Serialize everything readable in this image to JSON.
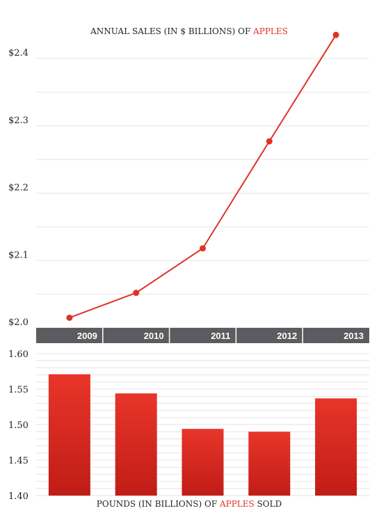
{
  "colors": {
    "accent": "#e03126",
    "bar_top": "#e8352a",
    "bar_bottom": "#c01d17",
    "axis_band": "#5c5c60",
    "axis_band_text": "#ffffff",
    "grid": "#e4e4e4",
    "text": "#222222"
  },
  "chart_data": [
    {
      "type": "line",
      "title_parts": [
        "ANNUAL SALES (IN $ BILLIONS) OF ",
        "APPLES",
        ""
      ],
      "x": [
        "2009",
        "2010",
        "2011",
        "2012",
        "2013"
      ],
      "series": [
        {
          "values": [
            2.015,
            2.052,
            2.118,
            2.277,
            2.435
          ]
        }
      ],
      "ylim": [
        2.0,
        2.43
      ],
      "y_ticks": [
        2.0,
        2.1,
        2.2,
        2.3,
        2.4
      ],
      "y_tick_labels": [
        "$2.0",
        "$2.1",
        "$2.2",
        "$2.3",
        "$2.4"
      ],
      "grid": true
    },
    {
      "type": "bar",
      "title_parts": [
        "POUNDS (IN BILLIONS) OF ",
        "APPLES",
        " SOLD"
      ],
      "categories": [
        "2009",
        "2010",
        "2011",
        "2012",
        "2013"
      ],
      "series": [
        {
          "values": [
            1.571,
            1.544,
            1.494,
            1.49,
            1.537
          ]
        }
      ],
      "ylim": [
        1.4,
        1.605
      ],
      "y_ticks": [
        1.4,
        1.45,
        1.5,
        1.55,
        1.6
      ],
      "y_tick_labels": [
        "1.40",
        "1.45",
        "1.50",
        "1.55",
        "1.60"
      ],
      "grid": true
    }
  ],
  "x_axis_labels": [
    "2009",
    "2010",
    "2011",
    "2012",
    "2013"
  ]
}
